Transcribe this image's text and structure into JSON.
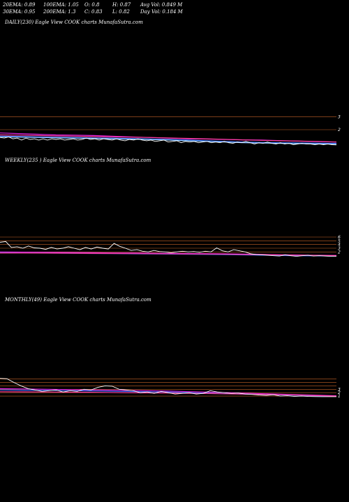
{
  "stats": {
    "ema20": "20EMA: 0.89",
    "ema100": "100EMA: 1.05",
    "open": "O: 0.8",
    "high": "H: 0.87",
    "avgvol": "Avg Vol: 0.849 M",
    "ema30": "30EMA: 0.95",
    "ema200": "200EMA: 1.3",
    "close": "C: 0.83",
    "low": "L: 0.82",
    "dayvol": "Day Vol: 0.184 M"
  },
  "panels": {
    "daily": {
      "title": "DAILY(230) Eagle  View  COOK charts MunafaSutra.com"
    },
    "weekly": {
      "title": "WEEKLY(235                    ) Eagle  View  COOK charts MunafaSutra.com"
    },
    "monthly": {
      "title": "MONTHLY(49) Eagle  View  COOK charts MunafaSutra.com"
    }
  },
  "colors": {
    "price": "#ffffff",
    "ema_magenta": "#e020e0",
    "ema_blue": "#3a6cff",
    "ema_pink": "#ff40a0",
    "ema_orange": "#e87820",
    "ema_lightblue": "#9ad0ff",
    "ref_line": "#c86428"
  },
  "chart_data": [
    {
      "type": "line",
      "title": "DAILY(230) Eagle  View  COOK charts MunafaSutra.com",
      "ylim": [
        0.5,
        3.5
      ],
      "y_ticks": [
        "3",
        "2"
      ],
      "ref_lines": [
        3,
        2
      ],
      "series": [
        {
          "values": [
            1.4,
            1.35,
            1.45,
            1.3,
            1.35,
            1.2,
            1.35,
            1.25,
            1.3,
            1.2,
            1.3,
            1.2,
            1.3,
            1.25,
            1.3,
            1.2,
            1.25,
            1.3,
            1.2,
            1.25,
            1.35,
            1.25,
            1.3,
            1.2,
            1.3,
            1.25,
            1.2,
            1.3,
            1.2,
            1.15,
            1.25,
            1.2,
            1.3,
            1.2,
            1.15,
            1.2,
            1.1,
            1.15,
            1.2,
            1.05,
            1.1,
            1.15,
            1.0,
            1.1,
            1.05,
            1.1,
            1.0,
            1.05,
            1.1,
            1.0,
            1.05,
            1.0,
            1.1,
            1.0,
            0.95,
            1.05,
            1.0,
            1.1,
            1.0,
            0.9,
            1.0,
            0.95,
            1.05,
            0.95,
            0.9,
            1.0,
            0.9,
            0.95,
            0.85,
            0.9,
            0.95,
            0.9,
            0.9,
            0.85,
            0.9,
            0.85,
            0.9,
            0.85,
            0.83
          ]
        },
        {
          "values": [
            1.75,
            1.7,
            1.65,
            1.6,
            1.58,
            1.55,
            1.5,
            1.45,
            1.4,
            1.35,
            1.3,
            1.28,
            1.25,
            1.22,
            1.2,
            1.16,
            1.12,
            1.08,
            1.05
          ]
        },
        {
          "values": [
            1.5,
            1.48,
            1.45,
            1.42,
            1.4,
            1.37,
            1.35,
            1.32,
            1.28,
            1.25,
            1.2,
            1.15,
            1.1,
            1.05,
            1.02,
            1.0,
            0.98,
            0.96,
            0.95
          ]
        },
        {
          "values": [
            1.6,
            1.58,
            1.55,
            1.52,
            1.5,
            1.47,
            1.45,
            1.42,
            1.4,
            1.36,
            1.33,
            1.3,
            1.26,
            1.22,
            1.18,
            1.15,
            1.12,
            1.1,
            1.05
          ]
        },
        {
          "values": [
            1.45,
            1.43,
            1.4,
            1.38,
            1.35,
            1.33,
            1.3,
            1.27,
            1.24,
            1.2,
            1.15,
            1.1,
            1.05,
            1.0,
            0.97,
            0.95,
            0.93,
            0.91,
            0.89
          ]
        }
      ]
    },
    {
      "type": "line",
      "title": "WEEKLY(235                    ) Eagle  View  COOK charts MunafaSutra.com",
      "y_ticks": [
        "6",
        "5",
        "4",
        "3",
        "2"
      ],
      "ylim": [
        0,
        9
      ],
      "ref_lines": [
        6,
        5,
        4,
        3,
        2
      ],
      "series": [
        {
          "values": [
            4.6,
            4.8,
            3.2,
            3.4,
            3.0,
            3.6,
            3.1,
            3.0,
            2.7,
            3.2,
            2.8,
            3.0,
            3.4,
            3.0,
            2.6,
            3.2,
            2.8,
            3.3,
            3.0,
            2.8,
            4.3,
            3.5,
            3.0,
            2.4,
            2.6,
            2.2,
            2.0,
            2.4,
            2.1,
            2.0,
            1.8,
            2.0,
            2.2,
            2.0,
            2.1,
            1.9,
            2.2,
            2.0,
            3.1,
            2.3,
            2.0,
            2.6,
            2.3,
            2.0,
            1.5,
            1.3,
            1.2,
            1.1,
            1.0,
            0.9,
            1.2,
            1.0,
            0.8,
            1.0,
            1.1,
            0.9,
            1.0,
            0.9,
            0.8,
            0.83
          ]
        },
        {
          "values": [
            2.0,
            1.95,
            1.9,
            1.85,
            1.8,
            1.75,
            1.7,
            1.65,
            1.6,
            1.55,
            1.5,
            1.4,
            1.3,
            1.2,
            1.1,
            1.05
          ]
        },
        {
          "values": [
            1.8,
            1.75,
            1.7,
            1.65,
            1.6,
            1.55,
            1.5,
            1.45,
            1.4,
            1.35,
            1.3,
            1.2,
            1.1,
            1.0,
            0.95,
            0.9
          ]
        },
        {
          "values": [
            1.7,
            1.7,
            1.68,
            1.65,
            1.62,
            1.6,
            1.56,
            1.52,
            1.48,
            1.44,
            1.4,
            1.32,
            1.25,
            1.15,
            1.08,
            1.0
          ]
        }
      ]
    },
    {
      "type": "line",
      "title": "MONTHLY(49) Eagle  View  COOK charts MunafaSutra.com",
      "y_ticks": [
        "3",
        "2",
        "1"
      ],
      "ylim": [
        0,
        9
      ],
      "ref_lines": [
        6,
        5,
        4,
        3,
        2,
        1
      ],
      "series": [
        {
          "values": [
            6.2,
            6.1,
            5.0,
            4.0,
            3.2,
            2.8,
            2.4,
            2.6,
            2.8,
            2.2,
            2.6,
            2.4,
            3.0,
            2.8,
            3.6,
            4.0,
            3.9,
            3.0,
            2.8,
            2.6,
            2.0,
            2.2,
            1.8,
            2.4,
            2.0,
            1.6,
            1.8,
            2.0,
            1.6,
            1.8,
            2.6,
            2.2,
            2.0,
            1.8,
            1.9,
            1.6,
            1.5,
            1.3,
            1.2,
            1.4,
            1.0,
            1.1,
            0.9,
            1.0,
            0.9,
            0.85,
            0.84,
            0.83,
            0.83
          ]
        },
        {
          "values": [
            3.2,
            3.1,
            3.0,
            2.9,
            2.8,
            2.7,
            2.6,
            2.5,
            2.3,
            2.1,
            1.9,
            1.7,
            1.5,
            1.3,
            1.1
          ]
        },
        {
          "values": [
            2.8,
            2.75,
            2.7,
            2.6,
            2.5,
            2.4,
            2.3,
            2.2,
            2.0,
            1.8,
            1.6,
            1.5,
            1.3,
            1.1,
            1.0
          ]
        },
        {
          "values": [
            2.3,
            2.25,
            2.2,
            2.15,
            2.1,
            2.0,
            1.95,
            1.9,
            1.8,
            1.7,
            1.6,
            1.5,
            1.4,
            1.2,
            1.0
          ]
        }
      ]
    }
  ]
}
